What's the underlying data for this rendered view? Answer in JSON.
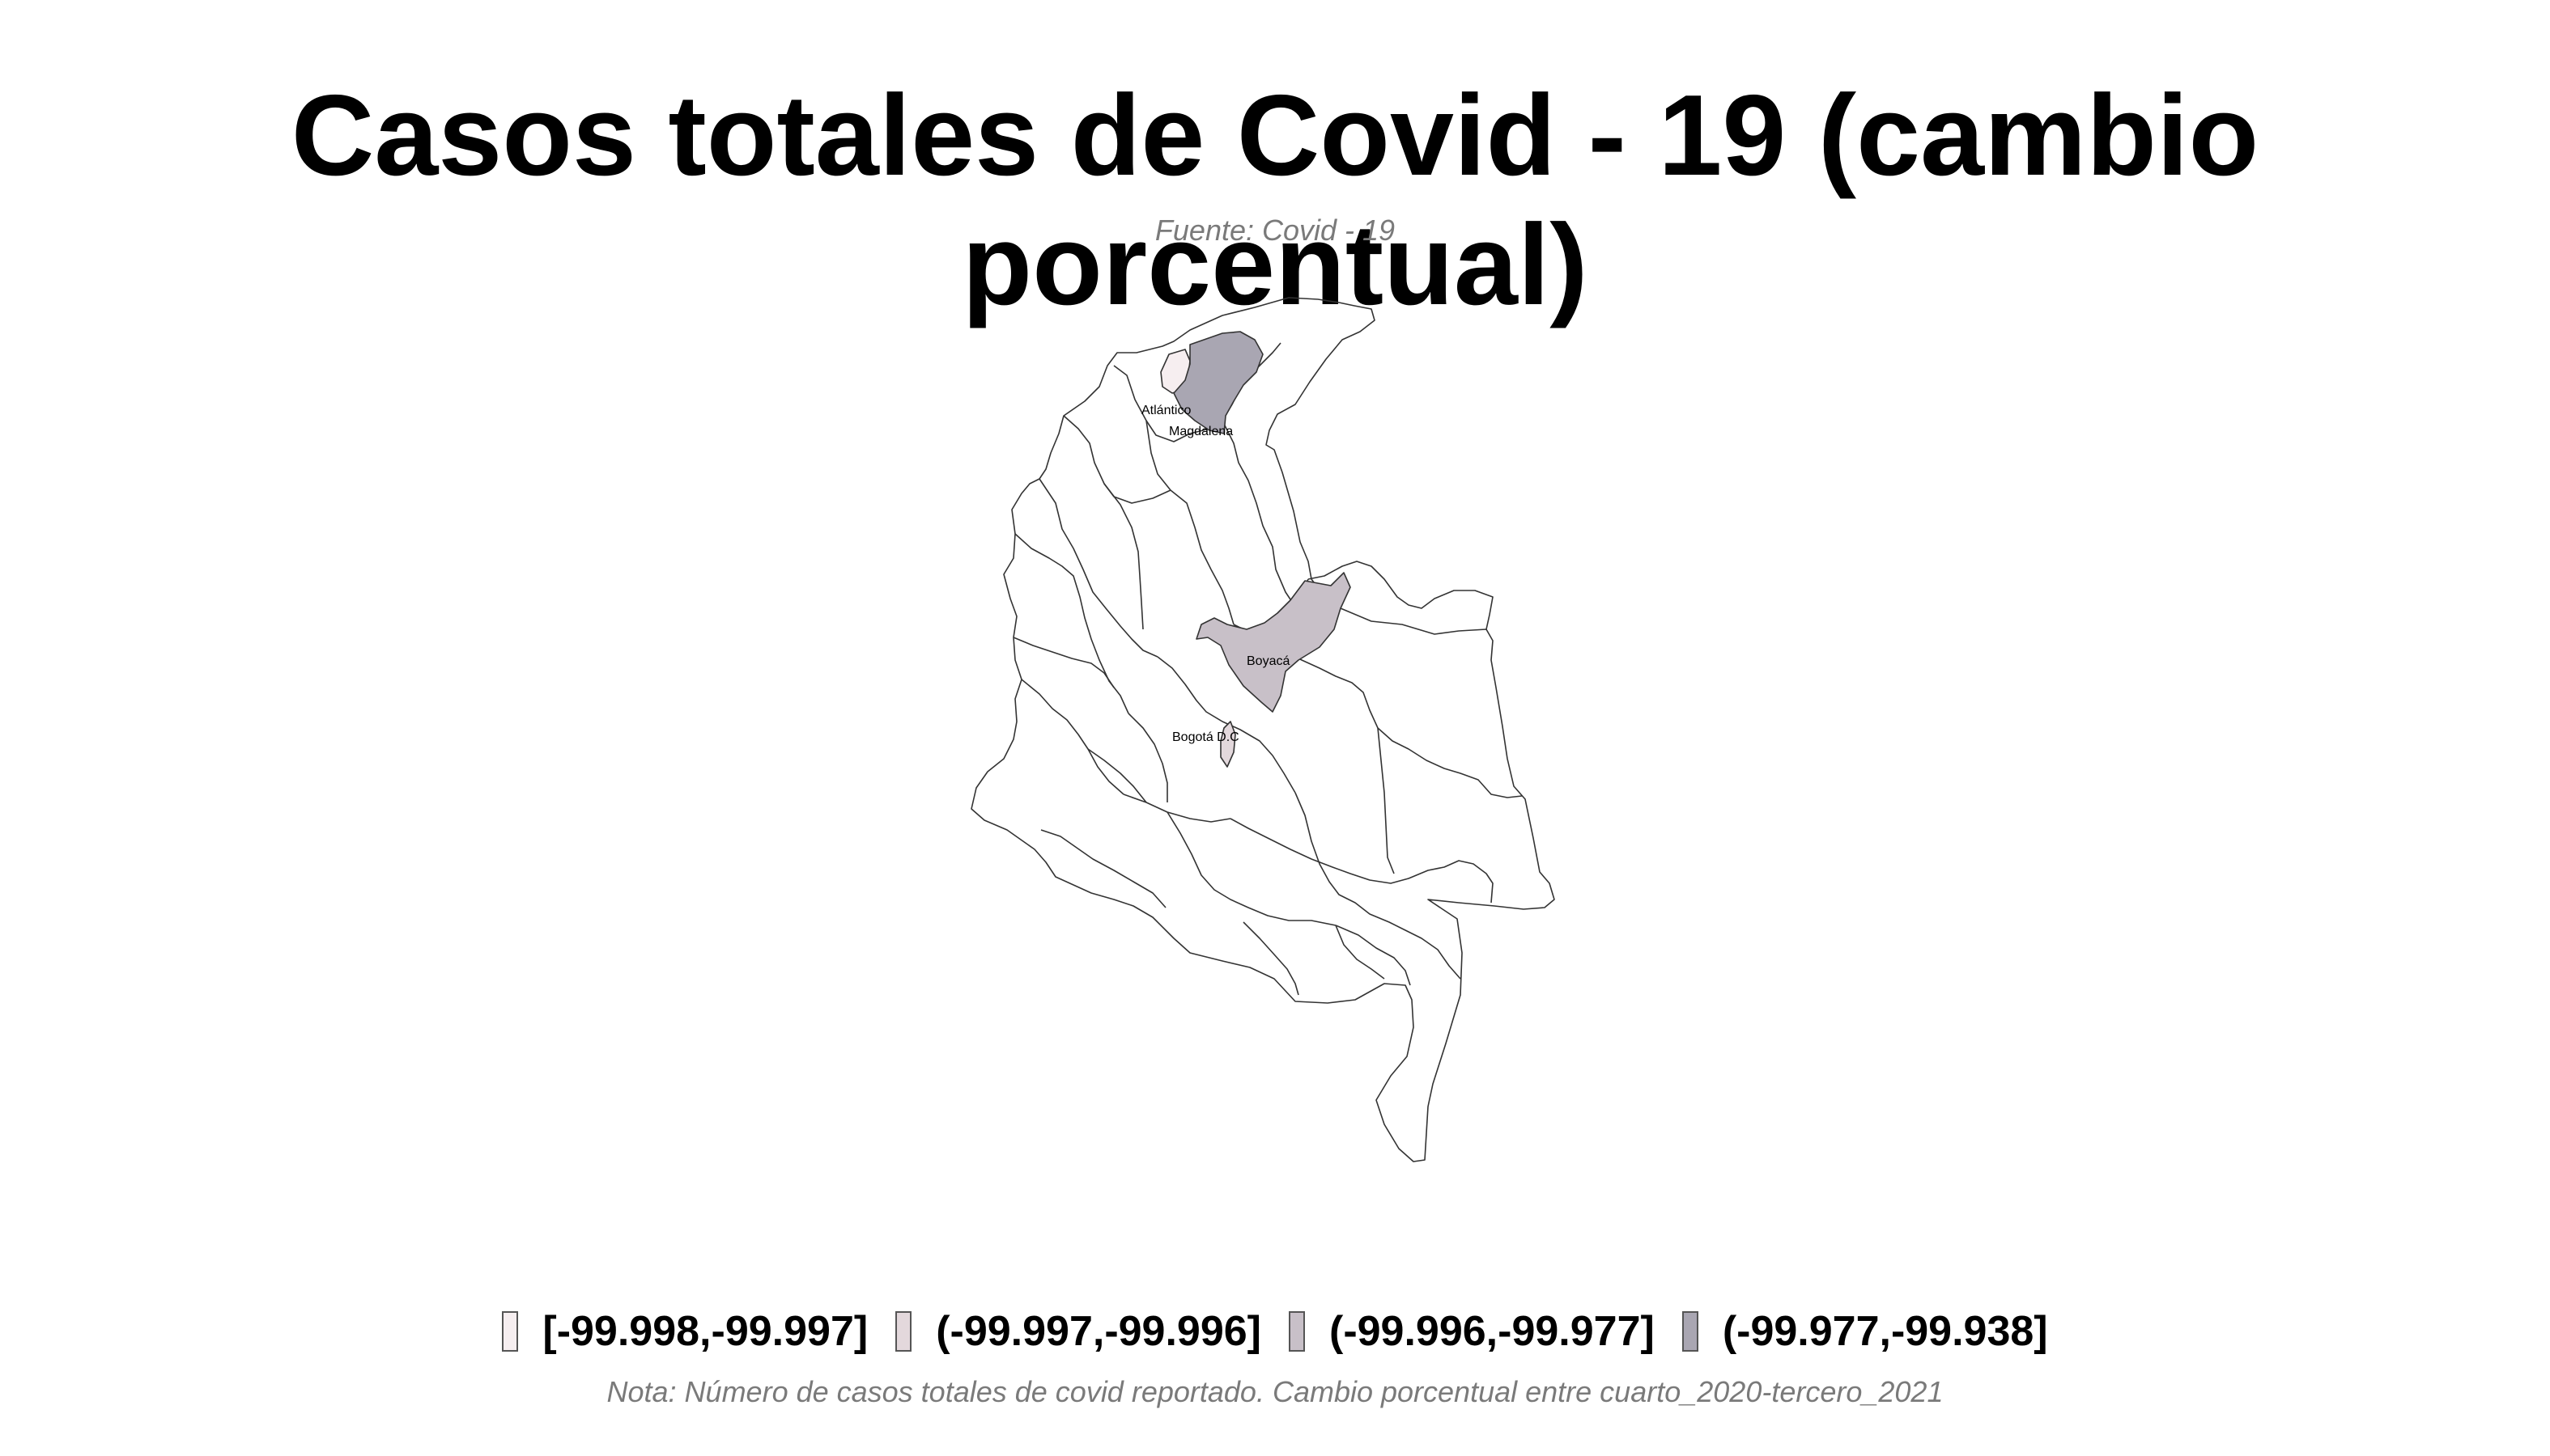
{
  "title": "Casos totales de Covid - 19 (cambio porcentual)",
  "subtitle": "Fuente: Covid - 19",
  "note": "Nota: Número de casos totales de covid reportado. Cambio porcentual entre cuarto_2020-tercero_2021",
  "legend": [
    {
      "label": "[-99.998,-99.997]",
      "color": "#f6eef0"
    },
    {
      "label": "(-99.997,-99.996]",
      "color": "#e3d8dc"
    },
    {
      "label": "(-99.996,-99.977]",
      "color": "#c8c0c8"
    },
    {
      "label": "(-99.977,-99.938]",
      "color": "#a9a6b2"
    }
  ],
  "regions": [
    {
      "name": "Atlántico",
      "label": "Atlántico",
      "class": 0
    },
    {
      "name": "Magdalena",
      "label": "Magdalena",
      "class": 3
    },
    {
      "name": "Boyacá",
      "label": "Boyacá",
      "class": 2
    },
    {
      "name": "Bogotá D.C",
      "label": "Bogotá D.C",
      "class": 1
    }
  ]
}
